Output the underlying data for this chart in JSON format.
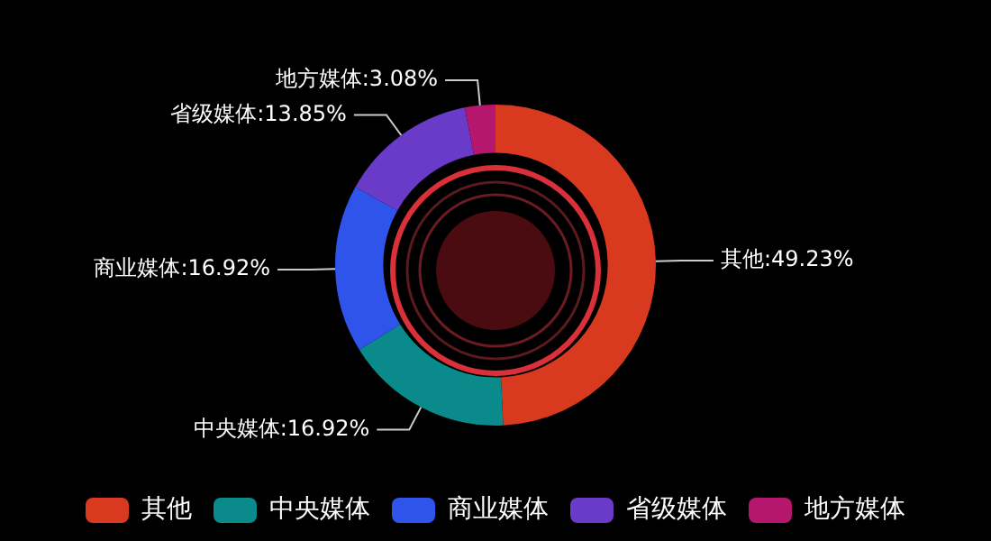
{
  "chart_data": {
    "type": "donut",
    "categories": [
      "其他",
      "中央媒体",
      "商业媒体",
      "省级媒体",
      "地方媒体"
    ],
    "values": [
      49.23,
      16.92,
      16.92,
      13.85,
      3.08
    ],
    "value_labels": [
      ":49.23%",
      ":16.92%",
      ":16.92%",
      ":13.85%",
      ":3.08%"
    ],
    "colors": [
      "#d9391f",
      "#0a8a8a",
      "#2f54eb",
      "#6a3ac9",
      "#b5176e"
    ],
    "legend": "bottom"
  }
}
